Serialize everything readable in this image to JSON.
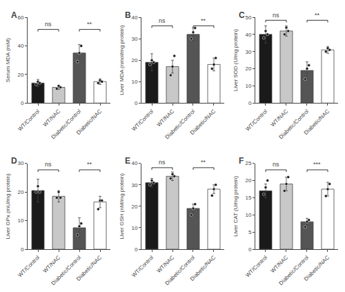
{
  "chart_data": [
    {
      "type": "bar",
      "title": "A",
      "ylabel": "Serum MDA (mM)",
      "categories": [
        "WT/Control",
        "WT/NAC",
        "Diabetic/Control",
        "Diabetic/NAC"
      ],
      "ylim": [
        0,
        60
      ],
      "yticks": [
        0,
        20,
        40,
        60
      ],
      "grid": false,
      "series": [
        {
          "type": "bar",
          "colors": [
            "#1a1a1a",
            "#c8c8c8",
            "#555555",
            "#ffffff"
          ],
          "values": [
            14,
            11,
            35,
            15
          ],
          "errors": [
            2.5,
            1.5,
            6,
            2
          ]
        },
        {
          "type": "scatter",
          "color": "#1a1a1a",
          "values": [
            [
              13,
              15,
              14
            ],
            [
              10,
              12,
              11
            ],
            [
              29,
              35,
              40
            ],
            [
              14,
              16,
              15
            ]
          ]
        }
      ],
      "annotations": [
        {
          "x": [
            "WT/Control",
            "WT/NAC"
          ],
          "y": 50,
          "text": "ns"
        },
        {
          "x": [
            "Diabetic/Control",
            "Diabetic/NAC"
          ],
          "y": 50,
          "text": "**"
        }
      ]
    },
    {
      "type": "bar",
      "title": "B",
      "ylabel": "Liver MDA (nmol/mg protein)",
      "categories": [
        "WT/Control",
        "WT/NAC",
        "Diabetic/Control",
        "Diabetic/NAC"
      ],
      "ylim": [
        0,
        40
      ],
      "yticks": [
        0,
        10,
        20,
        30,
        40
      ],
      "grid": false,
      "series": [
        {
          "type": "bar",
          "colors": [
            "#1a1a1a",
            "#c8c8c8",
            "#555555",
            "#ffffff"
          ],
          "values": [
            19,
            17,
            32,
            18
          ],
          "errors": [
            4,
            3,
            3,
            3
          ]
        },
        {
          "type": "scatter",
          "color": "#1a1a1a",
          "values": [
            [
              18,
              20,
              19
            ],
            [
              13,
              17,
              22
            ],
            [
              30,
              33,
              35
            ],
            [
              16,
              18,
              21
            ]
          ]
        }
      ],
      "annotations": [
        {
          "x": [
            "WT/Control",
            "WT/NAC"
          ],
          "y": 35,
          "text": "ns"
        },
        {
          "x": [
            "Diabetic/Control",
            "Diabetic/NAC"
          ],
          "y": 35,
          "text": "**"
        }
      ]
    },
    {
      "type": "bar",
      "title": "C",
      "ylabel": "Liver SOD (U/mg protein)",
      "categories": [
        "WT/Control",
        "WT/NAC",
        "Diabetic/Control",
        "Diabetic/NAC"
      ],
      "ylim": [
        0,
        50
      ],
      "yticks": [
        0,
        10,
        20,
        30,
        40,
        50
      ],
      "grid": false,
      "series": [
        {
          "type": "bar",
          "colors": [
            "#1a1a1a",
            "#c8c8c8",
            "#555555",
            "#ffffff"
          ],
          "values": [
            40,
            42,
            19,
            31
          ],
          "errors": [
            5,
            3,
            5,
            2
          ]
        },
        {
          "type": "scatter",
          "color": "#1a1a1a",
          "values": [
            [
              38,
              42,
              40
            ],
            [
              40,
              44,
              42
            ],
            [
              14,
              20,
              22
            ],
            [
              30,
              32,
              31
            ]
          ]
        }
      ],
      "annotations": [
        {
          "x": [
            "WT/Control",
            "WT/NAC"
          ],
          "y": 47,
          "text": "ns"
        },
        {
          "x": [
            "Diabetic/Control",
            "Diabetic/NAC"
          ],
          "y": 47,
          "text": "**"
        }
      ]
    },
    {
      "type": "bar",
      "title": "D",
      "ylabel": "Liver GPx (mU/mg protein)",
      "categories": [
        "WT/Control",
        "WT/NAC",
        "Diabetic/Control",
        "Diabetic/NAC"
      ],
      "ylim": [
        0,
        30
      ],
      "yticks": [
        0,
        10,
        20,
        30
      ],
      "grid": false,
      "series": [
        {
          "type": "bar",
          "colors": [
            "#1a1a1a",
            "#c8c8c8",
            "#555555",
            "#ffffff"
          ],
          "values": [
            20.5,
            18.5,
            7.5,
            16.5
          ],
          "errors": [
            4,
            2,
            3.5,
            2
          ]
        },
        {
          "type": "scatter",
          "color": "#1a1a1a",
          "values": [
            [
              20,
              22,
              20
            ],
            [
              18,
              20,
              18
            ],
            [
              5,
              8,
              9
            ],
            [
              14,
              17,
              17
            ]
          ]
        }
      ],
      "annotations": [
        {
          "x": [
            "WT/Control",
            "WT/NAC"
          ],
          "y": 27,
          "text": "ns"
        },
        {
          "x": [
            "Diabetic/Control",
            "Diabetic/NAC"
          ],
          "y": 27,
          "text": "**"
        }
      ]
    },
    {
      "type": "bar",
      "title": "E",
      "ylabel": "Liver GSH (nM/mg protein)",
      "categories": [
        "WT/Control",
        "WT/NAC",
        "Diabetic/Control",
        "Diabetic/NAC"
      ],
      "ylim": [
        0,
        40
      ],
      "yticks": [
        0,
        10,
        20,
        30,
        40
      ],
      "grid": false,
      "series": [
        {
          "type": "bar",
          "colors": [
            "#1a1a1a",
            "#c8c8c8",
            "#555555",
            "#ffffff"
          ],
          "values": [
            31,
            34,
            19,
            28
          ],
          "errors": [
            2,
            2,
            2,
            2
          ]
        },
        {
          "type": "scatter",
          "color": "#1a1a1a",
          "values": [
            [
              30,
              32,
              31
            ],
            [
              33,
              35,
              34
            ],
            [
              16,
              19,
              21
            ],
            [
              25,
              28,
              30
            ]
          ]
        }
      ],
      "annotations": [
        {
          "x": [
            "WT/Control",
            "WT/NAC"
          ],
          "y": 37,
          "text": "ns"
        },
        {
          "x": [
            "Diabetic/Control",
            "Diabetic/NAC"
          ],
          "y": 37,
          "text": "**"
        }
      ]
    },
    {
      "type": "bar",
      "title": "F",
      "ylabel": "Liver CAT (U/mg protein)",
      "categories": [
        "WT/Control",
        "WT/NAC",
        "Diabetic/Control",
        "Diabetic/NAC"
      ],
      "ylim": [
        0,
        25
      ],
      "yticks": [
        0,
        5,
        10,
        15,
        20,
        25
      ],
      "grid": false,
      "series": [
        {
          "type": "bar",
          "colors": [
            "#1a1a1a",
            "#c8c8c8",
            "#555555",
            "#ffffff"
          ],
          "values": [
            17,
            19,
            8,
            17.5
          ],
          "errors": [
            2,
            2,
            1,
            2
          ]
        },
        {
          "type": "scatter",
          "color": "#1a1a1a",
          "values": [
            [
              16,
              18,
              20
            ],
            [
              17,
              19,
              21
            ],
            [
              6.5,
              8,
              8.5
            ],
            [
              15.5,
              17.5,
              19
            ]
          ]
        }
      ],
      "annotations": [
        {
          "x": [
            "WT/Control",
            "WT/NAC"
          ],
          "y": 22.5,
          "text": "ns"
        },
        {
          "x": [
            "Diabetic/Control",
            "Diabetic/NAC"
          ],
          "y": 22.5,
          "text": "***"
        }
      ]
    }
  ]
}
